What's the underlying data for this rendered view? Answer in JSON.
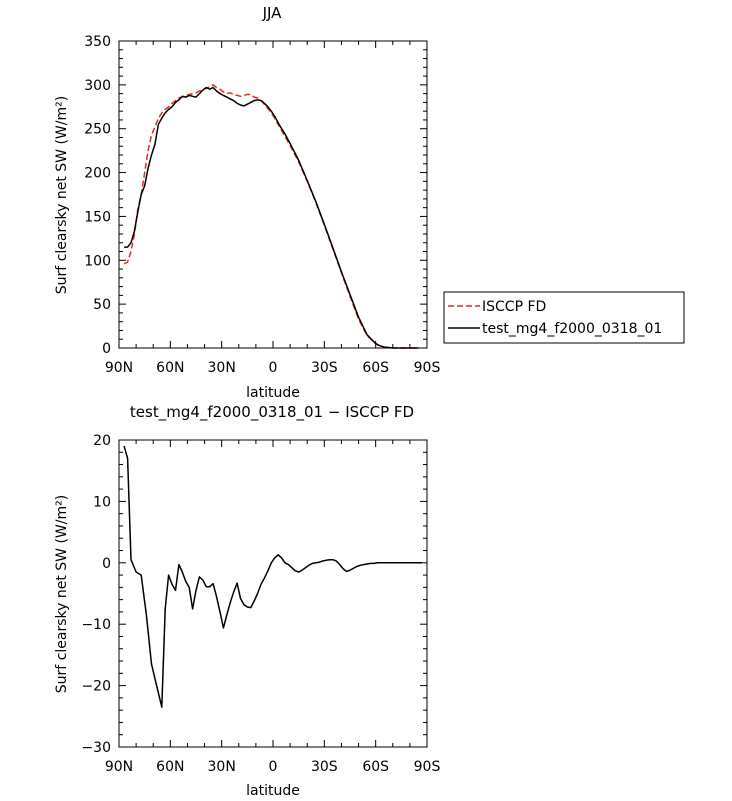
{
  "chart_data": [
    {
      "type": "line",
      "title": "JJA",
      "xlabel": "latitude",
      "ylabel": "Surf clearsky net SW (W/m²)",
      "xlim": [
        90,
        -90
      ],
      "ylim": [
        0,
        350
      ],
      "x_tick_labels": [
        "90N",
        "60N",
        "30N",
        "0",
        "30S",
        "60S",
        "90S"
      ],
      "x_tick_values": [
        90,
        60,
        30,
        0,
        -30,
        -60,
        -90
      ],
      "y_tick_values": [
        0,
        50,
        100,
        150,
        200,
        250,
        300,
        350
      ],
      "legend_position": "right",
      "series": [
        {
          "name": "ISCCP FD",
          "color": "#e8281e",
          "dash": "dashed",
          "x": [
            87,
            85,
            83,
            81,
            79,
            77,
            75,
            73,
            71,
            69,
            67,
            65,
            63,
            61,
            59,
            57,
            55,
            53,
            51,
            49,
            47,
            45,
            43,
            41,
            39,
            37,
            35,
            33,
            31,
            29,
            27,
            25,
            23,
            21,
            19,
            17,
            15,
            13,
            11,
            9,
            7,
            5,
            3,
            1,
            -1,
            -3,
            -5,
            -7,
            -10,
            -15,
            -20,
            -25,
            -30,
            -35,
            -40,
            -45,
            -50,
            -55,
            -60,
            -62,
            -65,
            -70,
            -75,
            -80,
            -85
          ],
          "y": [
            96,
            98,
            110,
            130,
            158,
            175,
            200,
            225,
            243,
            252,
            262,
            268,
            272,
            275,
            279,
            282,
            285,
            286,
            288,
            289,
            290,
            291,
            293,
            295,
            296,
            298,
            300,
            297,
            295,
            292,
            290,
            291,
            289,
            288,
            287,
            288,
            289,
            289,
            286,
            285,
            282,
            278,
            273,
            268,
            262,
            255,
            248,
            241,
            231,
            212,
            190,
            166,
            140,
            113,
            86,
            59,
            33,
            14,
            5,
            3,
            1,
            0,
            0,
            0,
            0
          ]
        },
        {
          "name": "test_mg4_f2000_0318_01",
          "color": "#000000",
          "dash": "solid",
          "x": [
            87,
            85,
            83,
            81,
            79,
            77,
            75,
            73,
            71,
            69,
            67,
            65,
            63,
            61,
            59,
            57,
            55,
            53,
            51,
            49,
            47,
            45,
            43,
            41,
            39,
            37,
            35,
            33,
            31,
            29,
            27,
            25,
            23,
            21,
            19,
            17,
            15,
            13,
            11,
            9,
            7,
            5,
            3,
            1,
            -1,
            -3,
            -5,
            -7,
            -10,
            -15,
            -20,
            -25,
            -30,
            -35,
            -40,
            -45,
            -50,
            -55,
            -60,
            -62,
            -65,
            -70,
            -75,
            -80,
            -85
          ],
          "y": [
            115,
            115,
            120,
            133,
            155,
            175,
            185,
            205,
            220,
            232,
            255,
            262,
            268,
            272,
            275,
            280,
            283,
            287,
            286,
            288,
            287,
            286,
            290,
            294,
            297,
            295,
            297,
            293,
            290,
            288,
            286,
            284,
            282,
            279,
            277,
            276,
            278,
            280,
            282,
            283,
            282,
            279,
            275,
            270,
            264,
            257,
            250,
            244,
            233,
            214,
            191,
            167,
            141,
            114,
            87,
            61,
            35,
            15,
            5,
            3,
            1,
            0,
            0,
            0,
            0
          ]
        }
      ]
    },
    {
      "type": "line",
      "title": "test_mg4_f2000_0318_01 − ISCCP FD",
      "xlabel": "latitude",
      "ylabel": "Surf clearsky net SW (W/m²)",
      "xlim": [
        90,
        -90
      ],
      "ylim": [
        -30,
        20
      ],
      "x_tick_labels": [
        "90N",
        "60N",
        "30N",
        "0",
        "30S",
        "60S",
        "90S"
      ],
      "x_tick_values": [
        90,
        60,
        30,
        0,
        -30,
        -60,
        -90
      ],
      "y_tick_values": [
        -30,
        -20,
        -10,
        0,
        10,
        20
      ],
      "series": [
        {
          "color": "#000000",
          "dash": "solid",
          "x": [
            87,
            85,
            83,
            80,
            77,
            74,
            71,
            68,
            65,
            63,
            61,
            59,
            57,
            55,
            53,
            51,
            49,
            47,
            45,
            43,
            41,
            39,
            37,
            35,
            33,
            31,
            29,
            27,
            25,
            23,
            21,
            19,
            17,
            15,
            13,
            11,
            9,
            7,
            5,
            3,
            1,
            -1,
            -3,
            -5,
            -7,
            -9,
            -11,
            -13,
            -15,
            -17,
            -19,
            -21,
            -23,
            -25,
            -27,
            -29,
            -31,
            -33,
            -35,
            -37,
            -39,
            -41,
            -43,
            -45,
            -47,
            -49,
            -51,
            -53,
            -55,
            -57,
            -59,
            -61,
            -63,
            -65,
            -67,
            -69,
            -71,
            -73,
            -75,
            -77,
            -79,
            -81,
            -83,
            -85,
            -87
          ],
          "y": [
            19,
            17,
            0.5,
            -1.5,
            -2,
            -8.5,
            -16.5,
            -20,
            -23.5,
            -7.5,
            -2,
            -3.5,
            -4.5,
            -0.3,
            -1.5,
            -3,
            -4,
            -7.5,
            -4.5,
            -2.3,
            -2.8,
            -3.9,
            -3.9,
            -3.4,
            -5.5,
            -8,
            -10.6,
            -8.5,
            -6.5,
            -4.8,
            -3.3,
            -5.8,
            -6.8,
            -7.2,
            -7.3,
            -6.2,
            -5,
            -3.5,
            -2.5,
            -1.3,
            0,
            0.8,
            1.3,
            0.8,
            0,
            -0.3,
            -0.8,
            -1.3,
            -1.5,
            -1.2,
            -0.8,
            -0.4,
            -0.1,
            0,
            0.1,
            0.3,
            0.4,
            0.5,
            0.5,
            0.3,
            -0.3,
            -1,
            -1.4,
            -1.2,
            -0.9,
            -0.6,
            -0.4,
            -0.3,
            -0.2,
            -0.1,
            -0.1,
            0,
            0,
            0,
            0,
            0,
            0,
            0,
            0,
            0,
            0,
            0,
            0,
            0,
            0
          ]
        }
      ]
    }
  ]
}
